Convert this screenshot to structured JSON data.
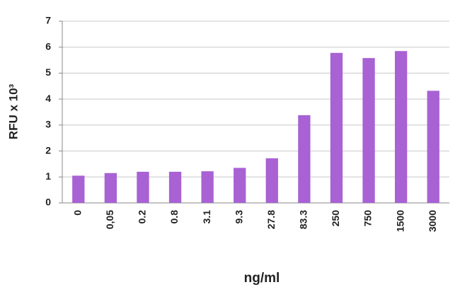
{
  "chart_data": {
    "type": "bar",
    "y_label": "RFU x 10³",
    "x_label": "ng/ml",
    "categories": [
      "0",
      "0,05",
      "0.2",
      "0.8",
      "3.1",
      "9.3",
      "27.8",
      "83.3",
      "250",
      "750",
      "1500",
      "3000"
    ],
    "values": [
      1.05,
      1.15,
      1.2,
      1.2,
      1.22,
      1.35,
      1.72,
      3.38,
      5.78,
      5.58,
      5.85,
      4.32
    ],
    "color": "#a862d4",
    "ylim": [
      0,
      7
    ],
    "yticks": [
      0,
      1,
      2,
      3,
      4,
      5,
      6,
      7
    ],
    "grid": true
  }
}
